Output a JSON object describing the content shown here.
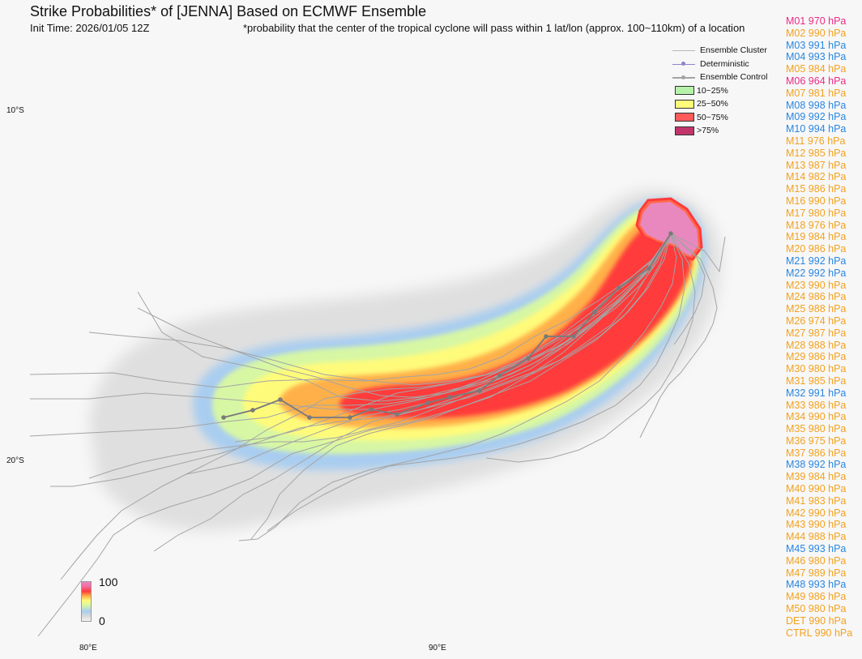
{
  "title": "Strike Probabilities* of [JENNA] Based on ECMWF Ensemble",
  "init_time": "Init Time: 2026/01/05 12Z",
  "footnote": "*probability that the center of the tropical cyclone will pass within 1 lat/lon (approx. 100~110km) of a location",
  "axes": {
    "lat_labels": [
      "10°S",
      "20°S"
    ],
    "lon_labels": [
      "80°E",
      "90°E"
    ]
  },
  "legend": {
    "ensemble_cluster": "Ensemble Cluster",
    "deterministic": "Deterministic",
    "ensemble_control": "Ensemble Control",
    "bins": [
      {
        "label": "10~25%",
        "color": "#b6f3a9"
      },
      {
        "label": "25~50%",
        "color": "#fffb7a"
      },
      {
        "label": "50~75%",
        "color": "#ff5a5a"
      },
      {
        "label": ">75%",
        "color": "#c2356a"
      }
    ]
  },
  "colorbar": {
    "max": "100",
    "min": "0"
  },
  "colors": {
    "intense": "#ec2a86",
    "moderate": "#f3a21f",
    "weak": "#2a86e0"
  },
  "members": [
    {
      "label": "M01 970 hPa",
      "level": "intense"
    },
    {
      "label": "M02 990 hPa",
      "level": "moderate"
    },
    {
      "label": "M03 991 hPa",
      "level": "weak"
    },
    {
      "label": "M04 993 hPa",
      "level": "weak"
    },
    {
      "label": "M05 984 hPa",
      "level": "moderate"
    },
    {
      "label": "M06 964 hPa",
      "level": "intense"
    },
    {
      "label": "M07 981 hPa",
      "level": "moderate"
    },
    {
      "label": "M08 998 hPa",
      "level": "weak"
    },
    {
      "label": "M09 992 hPa",
      "level": "weak"
    },
    {
      "label": "M10 994 hPa",
      "level": "weak"
    },
    {
      "label": "M11 976 hPa",
      "level": "moderate"
    },
    {
      "label": "M12 985 hPa",
      "level": "moderate"
    },
    {
      "label": "M13 987 hPa",
      "level": "moderate"
    },
    {
      "label": "M14 982 hPa",
      "level": "moderate"
    },
    {
      "label": "M15 986 hPa",
      "level": "moderate"
    },
    {
      "label": "M16 990 hPa",
      "level": "moderate"
    },
    {
      "label": "M17 980 hPa",
      "level": "moderate"
    },
    {
      "label": "M18 976 hPa",
      "level": "moderate"
    },
    {
      "label": "M19 984 hPa",
      "level": "moderate"
    },
    {
      "label": "M20 986 hPa",
      "level": "moderate"
    },
    {
      "label": "M21 992 hPa",
      "level": "weak"
    },
    {
      "label": "M22 992 hPa",
      "level": "weak"
    },
    {
      "label": "M23 990 hPa",
      "level": "moderate"
    },
    {
      "label": "M24 986 hPa",
      "level": "moderate"
    },
    {
      "label": "M25 988 hPa",
      "level": "moderate"
    },
    {
      "label": "M26 974 hPa",
      "level": "moderate"
    },
    {
      "label": "M27 987 hPa",
      "level": "moderate"
    },
    {
      "label": "M28 988 hPa",
      "level": "moderate"
    },
    {
      "label": "M29 986 hPa",
      "level": "moderate"
    },
    {
      "label": "M30 980 hPa",
      "level": "moderate"
    },
    {
      "label": "M31 985 hPa",
      "level": "moderate"
    },
    {
      "label": "M32 991 hPa",
      "level": "weak"
    },
    {
      "label": "M33 986 hPa",
      "level": "moderate"
    },
    {
      "label": "M34 990 hPa",
      "level": "moderate"
    },
    {
      "label": "M35 980 hPa",
      "level": "moderate"
    },
    {
      "label": "M36 975 hPa",
      "level": "moderate"
    },
    {
      "label": "M37 986 hPa",
      "level": "moderate"
    },
    {
      "label": "M38 992 hPa",
      "level": "weak"
    },
    {
      "label": "M39 984 hPa",
      "level": "moderate"
    },
    {
      "label": "M40 990 hPa",
      "level": "moderate"
    },
    {
      "label": "M41 983 hPa",
      "level": "moderate"
    },
    {
      "label": "M42 990 hPa",
      "level": "moderate"
    },
    {
      "label": "M43 990 hPa",
      "level": "moderate"
    },
    {
      "label": "M44 988 hPa",
      "level": "moderate"
    },
    {
      "label": "M45 993 hPa",
      "level": "weak"
    },
    {
      "label": "M46 980 hPa",
      "level": "moderate"
    },
    {
      "label": "M47 989 hPa",
      "level": "moderate"
    },
    {
      "label": "M48 993 hPa",
      "level": "weak"
    },
    {
      "label": "M49 986 hPa",
      "level": "moderate"
    },
    {
      "label": "M50 980 hPa",
      "level": "moderate"
    },
    {
      "label": "DET 990 hPa",
      "level": "moderate"
    },
    {
      "label": "CTRL 990 hPa",
      "level": "moderate"
    }
  ]
}
